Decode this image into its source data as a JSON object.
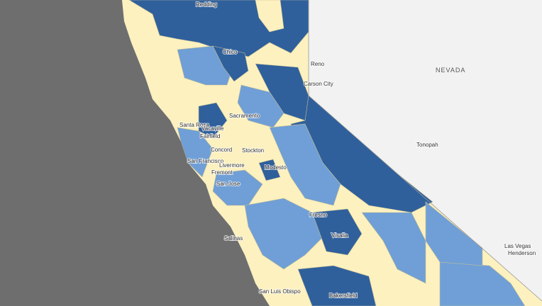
{
  "map": {
    "state_label": "NEVADA",
    "cities": [
      "Redding",
      "Chico",
      "Reno",
      "Carson City",
      "Sacramento",
      "Santa Rosa",
      "Vacaville",
      "Fairfield",
      "Concord",
      "Stockton",
      "San Francisco",
      "Livermore",
      "Modesto",
      "Fremont",
      "San Jose",
      "Tonopah",
      "Fresno",
      "Salinas",
      "Visalia",
      "Las Vegas",
      "Henderson",
      "Bakersfield",
      "San Luis Obispo"
    ]
  }
}
